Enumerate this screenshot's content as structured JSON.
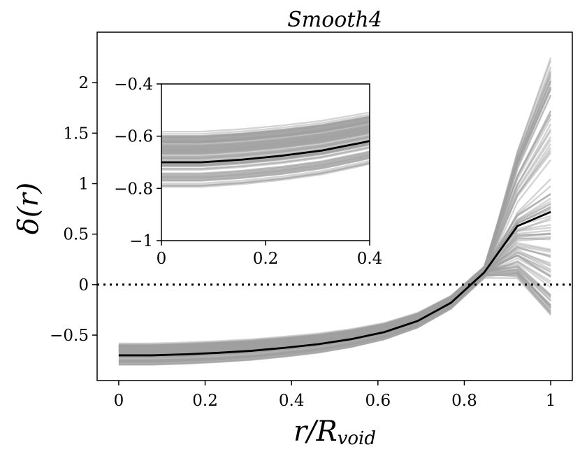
{
  "chart_data": {
    "type": "line",
    "title": "Smooth4",
    "xlabel": "r/R_void",
    "ylabel": "δ(r)",
    "xlim": [
      -0.05,
      1.05
    ],
    "ylim": [
      -0.95,
      2.5
    ],
    "xticks": [
      0,
      0.2,
      0.4,
      0.6,
      0.8,
      1
    ],
    "xtick_labels": [
      "0",
      "0.2",
      "0.4",
      "0.6",
      "0.8",
      "1"
    ],
    "yticks": [
      -0.5,
      0,
      0.5,
      1,
      1.5,
      2
    ],
    "ytick_labels": [
      "−0.5",
      "0",
      "0.5",
      "1",
      "1.5",
      "2"
    ],
    "reference_line": {
      "y": 0,
      "style": "dotted"
    },
    "x": [
      0,
      0.077,
      0.154,
      0.231,
      0.308,
      0.385,
      0.462,
      0.538,
      0.615,
      0.692,
      0.769,
      0.846,
      0.923,
      1.0
    ],
    "mean_profile": [
      -0.7,
      -0.7,
      -0.69,
      -0.675,
      -0.655,
      -0.625,
      -0.59,
      -0.54,
      -0.47,
      -0.36,
      -0.18,
      0.12,
      0.58,
      0.72
    ],
    "individual_profiles": {
      "count": 100,
      "color": "#a0a0a0",
      "center_range": [
        -0.82,
        -0.57
      ],
      "endpoint_range": [
        -0.28,
        2.35
      ]
    },
    "inset": {
      "xlim": [
        0,
        0.4
      ],
      "ylim": [
        -1,
        -0.4
      ],
      "xticks": [
        0,
        0.2,
        0.4
      ],
      "xtick_labels": [
        "0",
        "0.2",
        "0.4"
      ],
      "yticks": [
        -1,
        -0.8,
        -0.6,
        -0.4
      ],
      "ytick_labels": [
        "−1",
        "−0.8",
        "−0.6",
        "−0.4"
      ]
    }
  }
}
